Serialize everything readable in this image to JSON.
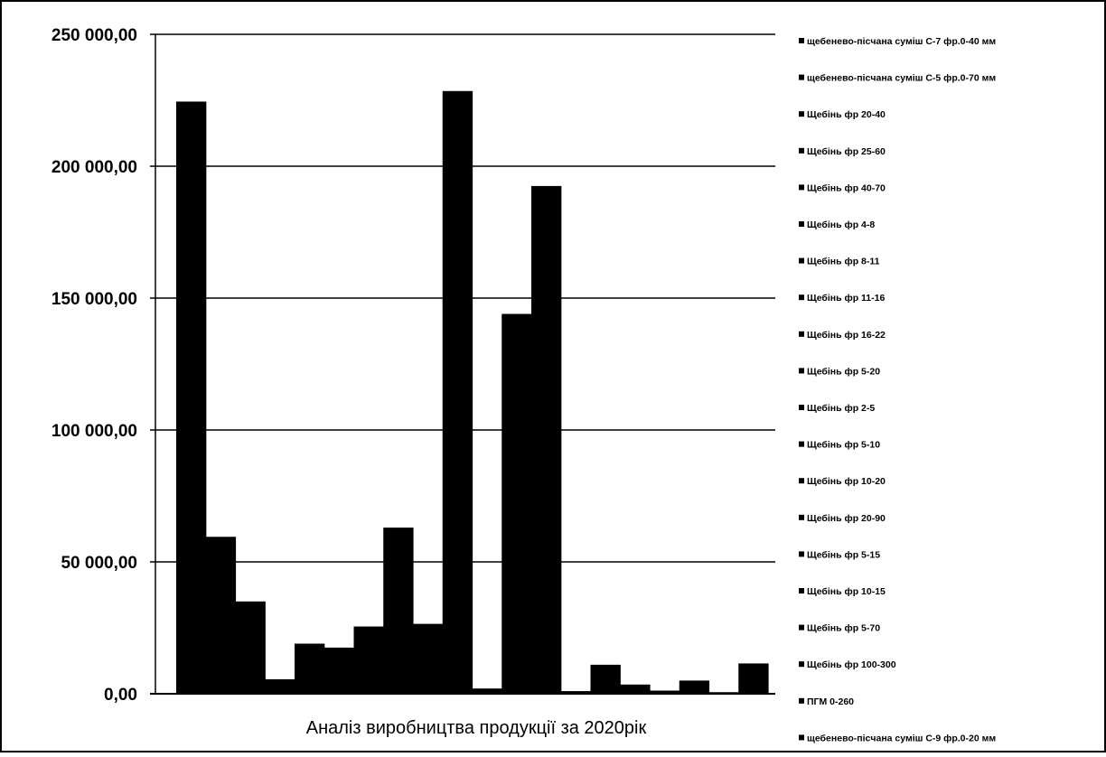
{
  "chart_data": {
    "type": "bar",
    "xlabel": "Аналіз виробництва продукції за 2020рік",
    "ylim": [
      0,
      250000
    ],
    "yticks": [
      "0,00",
      "50 000,00",
      "100 000,00",
      "150 000,00",
      "200 000,00",
      "250 000,00"
    ],
    "grid": true,
    "legend_position": "right",
    "bar_color": "#000000",
    "series": [
      {
        "name": "щебенево-піcчана суміш С-7 фр.0-40 мм",
        "values": [
          224500
        ]
      },
      {
        "name": "щебенево-піcчана суміш С-5 фр.0-70 мм",
        "values": [
          59500
        ]
      },
      {
        "name": "Щебінь фр 20-40",
        "values": [
          35000
        ]
      },
      {
        "name": "Щебінь фр 25-60",
        "values": [
          5500
        ]
      },
      {
        "name": "Щебінь фр 40-70",
        "values": [
          19000
        ]
      },
      {
        "name": "Щебінь фр 4-8",
        "values": [
          17500
        ]
      },
      {
        "name": "Щебінь фр 8-11",
        "values": [
          25500
        ]
      },
      {
        "name": "Щебінь фр 11-16",
        "values": [
          63000
        ]
      },
      {
        "name": "Щебінь фр 16-22",
        "values": [
          26500
        ]
      },
      {
        "name": "Щебінь фр 5-20",
        "values": [
          228500
        ]
      },
      {
        "name": "Щебінь фр 2-5",
        "values": [
          2000
        ]
      },
      {
        "name": "Щебінь фр 5-10",
        "values": [
          144000
        ]
      },
      {
        "name": "Щебінь фр 10-20",
        "values": [
          192500
        ]
      },
      {
        "name": "Щебінь фр 20-90",
        "values": [
          1000
        ]
      },
      {
        "name": "Щебінь фр 5-15",
        "values": [
          11000
        ]
      },
      {
        "name": "Щебінь фр 10-15",
        "values": [
          3500
        ]
      },
      {
        "name": "Щебінь фр 5-70",
        "values": [
          1200
        ]
      },
      {
        "name": "Щебінь фр 100-300",
        "values": [
          5000
        ]
      },
      {
        "name": "ПГМ 0-260",
        "values": [
          600
        ]
      },
      {
        "name": "щебенево-піcчана суміш С-9 фр.0-20 мм",
        "values": [
          11500
        ]
      }
    ]
  }
}
